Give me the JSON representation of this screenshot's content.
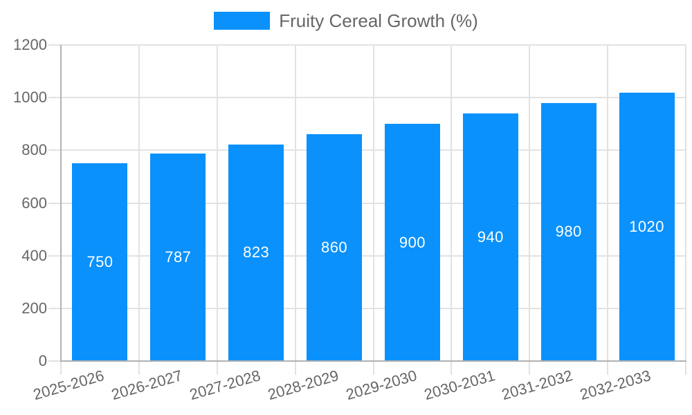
{
  "chart_data": {
    "type": "bar",
    "title": "Fruity Cereal Growth (%)",
    "categories": [
      "2025-2026",
      "2026-2027",
      "2027-2028",
      "2028-2029",
      "2029-2030",
      "2030-2031",
      "2031-2032",
      "2032-2033"
    ],
    "values": [
      750,
      787,
      823,
      860,
      900,
      940,
      980,
      1020
    ],
    "series": [
      {
        "name": "Fruity Cereal Growth (%)",
        "values": [
          750,
          787,
          823,
          860,
          900,
          940,
          980,
          1020
        ]
      }
    ],
    "xlabel": "",
    "ylabel": "",
    "ylim": [
      0,
      1200
    ],
    "ytick_step": 200,
    "ytick_labels": [
      "0",
      "200",
      "400",
      "600",
      "800",
      "1000",
      "1200"
    ],
    "grid": "on",
    "legend_position": "top-center",
    "bar_label_position": "center-of-bar",
    "x_label_rotation_deg": -16,
    "bar_color": "#0a91fb",
    "bar_label_color": "#ffffff",
    "tick_label_color": "#666666",
    "legend_text_color": "#666666",
    "grid_color": "#e2e2e2",
    "axis_color": "#b1b1b1",
    "background_color": "#ffffff"
  }
}
